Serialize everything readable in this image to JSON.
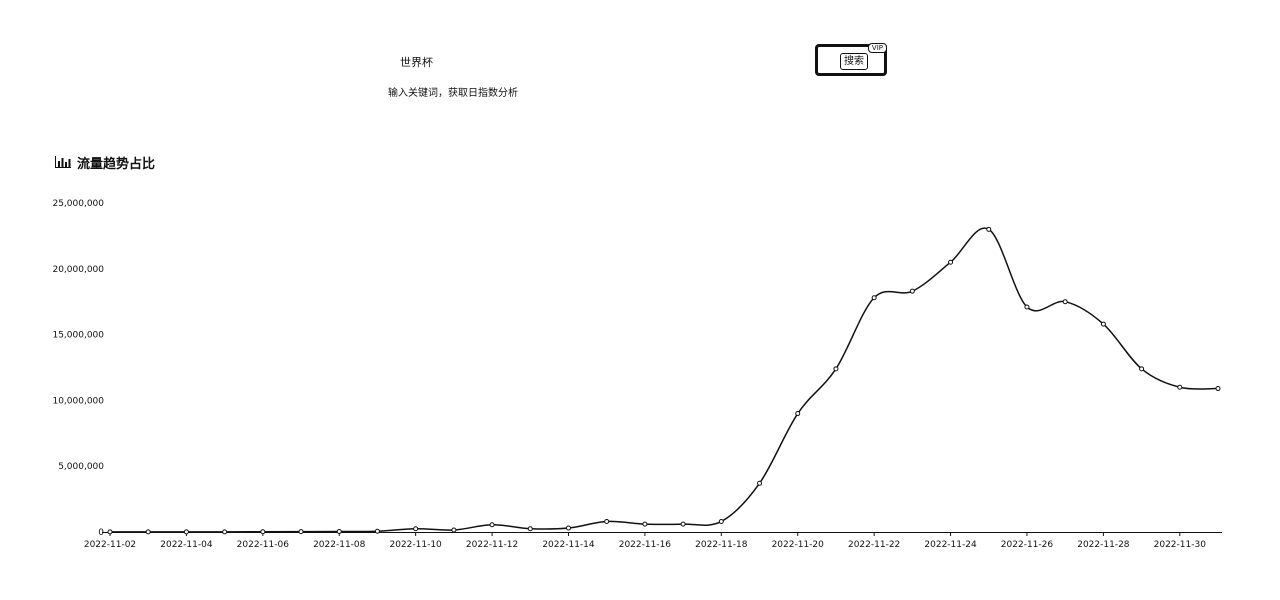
{
  "search": {
    "keyword": "世界杯",
    "hint": "输入关键词，获取日指数分析",
    "button_label": "搜索",
    "vip_badge": "VIP"
  },
  "section": {
    "title": "流量趋势占比",
    "icon": "bar-chart-icon"
  },
  "chart_data": {
    "type": "line",
    "title": "",
    "xlabel": "",
    "ylabel": "",
    "ylim": [
      0,
      25000000
    ],
    "y_ticks": [
      "0",
      "5,000,000",
      "10,000,000",
      "15,000,000",
      "20,000,000",
      "25,000,000"
    ],
    "x_tick_labels": [
      "2022-11-02",
      "2022-11-04",
      "2022-11-06",
      "2022-11-08",
      "2022-11-10",
      "2022-11-12",
      "2022-11-14",
      "2022-11-16",
      "2022-11-18",
      "2022-11-20",
      "2022-11-22",
      "2022-11-24",
      "2022-11-26",
      "2022-11-28",
      "2022-11-30"
    ],
    "x": [
      "2022-11-02",
      "2022-11-03",
      "2022-11-04",
      "2022-11-05",
      "2022-11-06",
      "2022-11-07",
      "2022-11-08",
      "2022-11-09",
      "2022-11-10",
      "2022-11-11",
      "2022-11-12",
      "2022-11-13",
      "2022-11-14",
      "2022-11-15",
      "2022-11-16",
      "2022-11-17",
      "2022-11-18",
      "2022-11-19",
      "2022-11-20",
      "2022-11-21",
      "2022-11-22",
      "2022-11-23",
      "2022-11-24",
      "2022-11-25",
      "2022-11-26",
      "2022-11-27",
      "2022-11-28",
      "2022-11-29",
      "2022-11-30",
      "2022-12-01"
    ],
    "values": [
      10000,
      10000,
      10000,
      10000,
      20000,
      30000,
      40000,
      60000,
      250000,
      150000,
      550000,
      250000,
      300000,
      800000,
      600000,
      600000,
      800000,
      3700000,
      9000000,
      12400000,
      17800000,
      18300000,
      20500000,
      23000000,
      17100000,
      17500000,
      15800000,
      12400000,
      11000000,
      10900000
    ],
    "grid": false,
    "legend": "none"
  }
}
